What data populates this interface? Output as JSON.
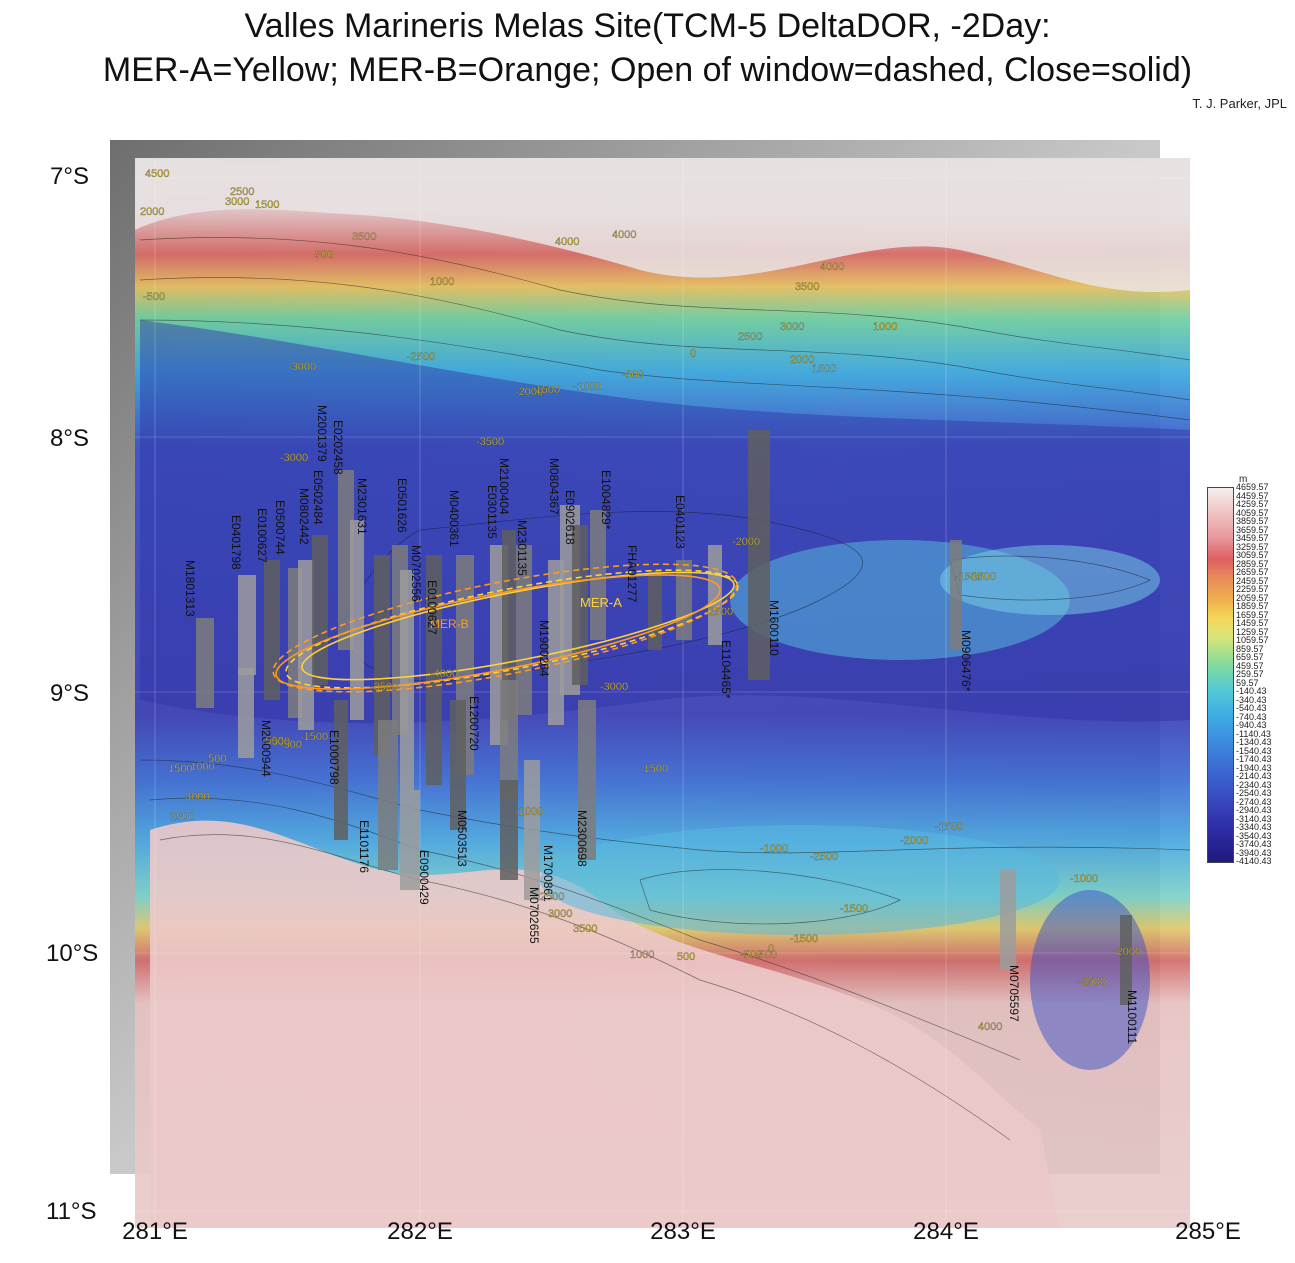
{
  "title_line1": "Valles Marineris Melas Site(TCM-5 DeltaDOR, -2Day:",
  "title_line2": "MER-A=Yellow; MER-B=Orange; Open of window=dashed, Close=solid)",
  "credit": "T. J. Parker, JPL",
  "lat_labels": [
    "7°S",
    "8°S",
    "9°S",
    "10°S",
    "11°S"
  ],
  "lon_labels": [
    "281°E",
    "282°E",
    "283°E",
    "284°E",
    "285°E"
  ],
  "ellipse_labels": {
    "mer_a": "MER-A",
    "mer_b": "MER-B"
  },
  "colorbar": {
    "unit": "m",
    "ticks": [
      "4659.57",
      "4459.57",
      "4259.57",
      "4059.57",
      "3859.57",
      "3659.57",
      "3459.57",
      "3259.57",
      "3059.57",
      "2859.57",
      "2659.57",
      "2459.57",
      "2259.57",
      "2059.57",
      "1859.57",
      "1659.57",
      "1459.57",
      "1259.57",
      "1059.57",
      "859.57",
      "659.57",
      "459.57",
      "259.57",
      "59.57",
      "-140.43",
      "-340.43",
      "-540.43",
      "-740.43",
      "-940.43",
      "-1140.43",
      "-1340.43",
      "-1540.43",
      "-1740.43",
      "-1940.43",
      "-2140.43",
      "-2340.43",
      "-2540.43",
      "-2740.43",
      "-2940.43",
      "-3140.43",
      "-3340.43",
      "-3540.43",
      "-3740.43",
      "-3940.43",
      "-4140.43"
    ]
  },
  "image_strip_labels": [
    "M1801313",
    "E0401798",
    "E0100627",
    "E0500744",
    "M0802442",
    "E0502484",
    "M2001379",
    "E0202458",
    "M2301631",
    "E0501626",
    "M0702556",
    "E0100627",
    "M0400361",
    "E0301135",
    "M2100404",
    "M2301135",
    "M0804367",
    "E0902618",
    "E1004829*",
    "M1900264",
    "FHA01277",
    "E0401123",
    "E1104465*",
    "M1600110",
    "M0906476*",
    "M2000944",
    "E1000798",
    "E1101176",
    "E0900429",
    "M0503513",
    "E1200720",
    "M1700861",
    "M0702655",
    "M2300698",
    "M0705597",
    "M1100111"
  ],
  "contour_labels": [
    "4500",
    "3000",
    "2500",
    "2000",
    "1500",
    "3500",
    "500",
    "1000",
    "4000",
    "4000",
    "4000",
    "3500",
    "3000",
    "2500",
    "2000",
    "1500",
    "1000",
    "0",
    "-500",
    "-1000",
    "-1500",
    "-2000",
    "-2500",
    "-3000",
    "-500",
    "-3000",
    "-3500",
    "-2000",
    "-1500",
    "-3000",
    "-2500",
    "-4000",
    "-3500",
    "-1500",
    "-500",
    "-1000",
    "-1500",
    "-2000",
    "-2500",
    "-1000",
    "-1500",
    "-500",
    "-1500",
    "-1000",
    "1000",
    "500",
    "-500",
    "0",
    "-1500",
    "-2500",
    "-2000",
    "-1500",
    "4000",
    "3500",
    "3000",
    "2500",
    "1000",
    "1500",
    "2500",
    "3000",
    "500",
    "-500",
    "-500"
  ]
}
